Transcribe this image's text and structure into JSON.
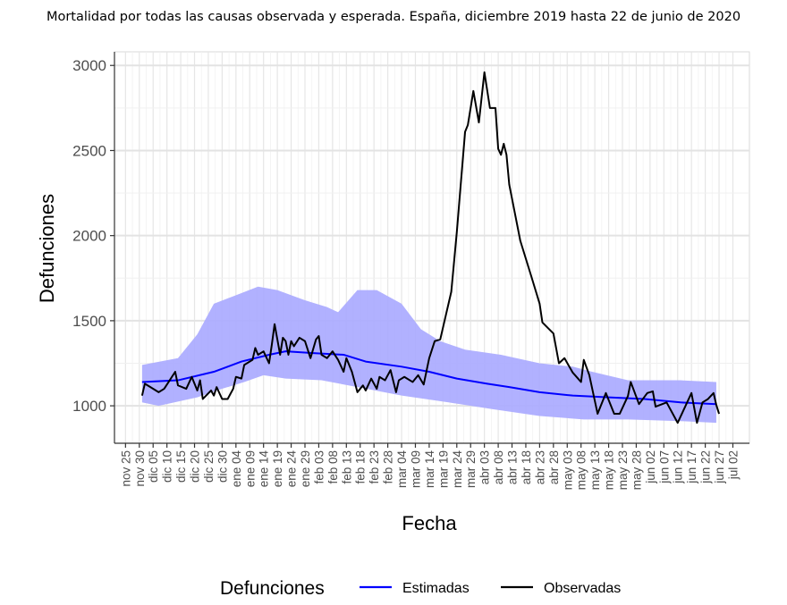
{
  "chart_data": {
    "type": "line",
    "title": "Mortalidad por todas las causas observada y esperada. España, diciembre 2019 hasta 22 de junio de 2020",
    "xlabel": "Fecha",
    "ylabel": "Defunciones",
    "x_unit": "days since 2019-11-25",
    "xlim": [
      -4,
      226
    ],
    "ylim": [
      780,
      3080
    ],
    "yticks": [
      1000,
      1500,
      2000,
      2500,
      3000
    ],
    "xtick_labels": [
      "nov 25",
      "nov 30",
      "dic 05",
      "dic 10",
      "dic 15",
      "dic 20",
      "dic 25",
      "dic 30",
      "ene 04",
      "ene 09",
      "ene 14",
      "ene 19",
      "ene 24",
      "ene 29",
      "feb 03",
      "feb 08",
      "feb 13",
      "feb 18",
      "feb 23",
      "feb 28",
      "mar 04",
      "mar 09",
      "mar 14",
      "mar 19",
      "mar 24",
      "mar 29",
      "abr 03",
      "abr 08",
      "abr 13",
      "abr 18",
      "abr 23",
      "abr 28",
      "may 03",
      "may 08",
      "may 13",
      "may 18",
      "may 23",
      "may 28",
      "jun 02",
      "jun 07",
      "jun 12",
      "jun 17",
      "jun 22",
      "jun 27",
      "jul 02"
    ],
    "xtick_step_days": 5,
    "grid": true,
    "legend": {
      "title": "Defunciones",
      "position": "bottom",
      "entries": [
        {
          "name": "Estimadas",
          "color": "#0000ff"
        },
        {
          "name": "Observadas",
          "color": "#000000"
        }
      ]
    },
    "band": {
      "color": "#a9a9ff",
      "upper": [
        [
          6,
          1240
        ],
        [
          19,
          1280
        ],
        [
          26,
          1420
        ],
        [
          32,
          1600
        ],
        [
          40,
          1650
        ],
        [
          48,
          1700
        ],
        [
          55,
          1680
        ],
        [
          65,
          1620
        ],
        [
          73,
          1580
        ],
        [
          77,
          1550
        ],
        [
          84,
          1680
        ],
        [
          91,
          1680
        ],
        [
          100,
          1600
        ],
        [
          107,
          1450
        ],
        [
          114,
          1380
        ],
        [
          123,
          1330
        ],
        [
          136,
          1300
        ],
        [
          150,
          1250
        ],
        [
          162,
          1230
        ],
        [
          169,
          1200
        ],
        [
          182,
          1150
        ],
        [
          201,
          1150
        ],
        [
          214,
          1140
        ]
      ],
      "lower": [
        [
          6,
          1020
        ],
        [
          12,
          1000
        ],
        [
          26,
          1050
        ],
        [
          35,
          1100
        ],
        [
          43,
          1140
        ],
        [
          50,
          1180
        ],
        [
          58,
          1160
        ],
        [
          71,
          1150
        ],
        [
          84,
          1110
        ],
        [
          100,
          1060
        ],
        [
          117,
          1020
        ],
        [
          133,
          980
        ],
        [
          150,
          940
        ],
        [
          166,
          920
        ],
        [
          182,
          920
        ],
        [
          201,
          910
        ],
        [
          214,
          900
        ]
      ]
    },
    "series": [
      {
        "name": "Estimadas",
        "color": "#0000ff",
        "points": [
          [
            6,
            1140
          ],
          [
            19,
            1150
          ],
          [
            32,
            1200
          ],
          [
            42,
            1260
          ],
          [
            52,
            1300
          ],
          [
            58,
            1320
          ],
          [
            68,
            1310
          ],
          [
            79,
            1300
          ],
          [
            87,
            1260
          ],
          [
            100,
            1230
          ],
          [
            110,
            1200
          ],
          [
            120,
            1160
          ],
          [
            131,
            1130
          ],
          [
            139,
            1110
          ],
          [
            150,
            1080
          ],
          [
            162,
            1060
          ],
          [
            175,
            1050
          ],
          [
            188,
            1040
          ],
          [
            201,
            1020
          ],
          [
            214,
            1010
          ]
        ]
      },
      {
        "name": "Observadas",
        "color": "#000000",
        "points": [
          [
            6,
            1060
          ],
          [
            7,
            1130
          ],
          [
            9,
            1110
          ],
          [
            12,
            1080
          ],
          [
            14,
            1100
          ],
          [
            16,
            1150
          ],
          [
            18,
            1200
          ],
          [
            19,
            1120
          ],
          [
            22,
            1100
          ],
          [
            24,
            1170
          ],
          [
            26,
            1090
          ],
          [
            27,
            1150
          ],
          [
            28,
            1040
          ],
          [
            31,
            1090
          ],
          [
            32,
            1060
          ],
          [
            33,
            1110
          ],
          [
            35,
            1040
          ],
          [
            37,
            1040
          ],
          [
            39,
            1100
          ],
          [
            40,
            1170
          ],
          [
            42,
            1160
          ],
          [
            43,
            1240
          ],
          [
            46,
            1270
          ],
          [
            47,
            1340
          ],
          [
            48,
            1300
          ],
          [
            50,
            1320
          ],
          [
            52,
            1250
          ],
          [
            53,
            1360
          ],
          [
            54,
            1480
          ],
          [
            56,
            1300
          ],
          [
            57,
            1400
          ],
          [
            58,
            1380
          ],
          [
            59,
            1300
          ],
          [
            60,
            1380
          ],
          [
            61,
            1350
          ],
          [
            63,
            1400
          ],
          [
            65,
            1380
          ],
          [
            67,
            1280
          ],
          [
            69,
            1390
          ],
          [
            70,
            1410
          ],
          [
            71,
            1300
          ],
          [
            73,
            1280
          ],
          [
            75,
            1320
          ],
          [
            77,
            1270
          ],
          [
            79,
            1200
          ],
          [
            80,
            1280
          ],
          [
            82,
            1200
          ],
          [
            84,
            1080
          ],
          [
            86,
            1120
          ],
          [
            87,
            1090
          ],
          [
            89,
            1160
          ],
          [
            91,
            1100
          ],
          [
            92,
            1170
          ],
          [
            94,
            1150
          ],
          [
            96,
            1210
          ],
          [
            98,
            1080
          ],
          [
            99,
            1150
          ],
          [
            101,
            1170
          ],
          [
            104,
            1140
          ],
          [
            106,
            1180
          ],
          [
            108,
            1125
          ],
          [
            110,
            1280
          ],
          [
            112,
            1380
          ],
          [
            114,
            1390
          ],
          [
            118,
            1670
          ],
          [
            120,
            2020
          ],
          [
            123,
            2610
          ],
          [
            124,
            2650
          ],
          [
            126,
            2850
          ],
          [
            128,
            2665
          ],
          [
            130,
            2960
          ],
          [
            132,
            2750
          ],
          [
            134,
            2750
          ],
          [
            135,
            2510
          ],
          [
            136,
            2475
          ],
          [
            137,
            2540
          ],
          [
            138,
            2475
          ],
          [
            139,
            2300
          ],
          [
            143,
            1970
          ],
          [
            147,
            1760
          ],
          [
            150,
            1600
          ],
          [
            151,
            1490
          ],
          [
            155,
            1425
          ],
          [
            157,
            1250
          ],
          [
            159,
            1280
          ],
          [
            162,
            1195
          ],
          [
            165,
            1140
          ],
          [
            166,
            1270
          ],
          [
            168,
            1180
          ],
          [
            171,
            953
          ],
          [
            174,
            1075
          ],
          [
            177,
            953
          ],
          [
            179,
            953
          ],
          [
            182,
            1058
          ],
          [
            183,
            1140
          ],
          [
            186,
            1010
          ],
          [
            189,
            1075
          ],
          [
            191,
            1085
          ],
          [
            192,
            995
          ],
          [
            196,
            1020
          ],
          [
            200,
            900
          ],
          [
            202,
            970
          ],
          [
            205,
            1075
          ],
          [
            207,
            900
          ],
          [
            209,
            1020
          ],
          [
            211,
            1040
          ],
          [
            213,
            1075
          ],
          [
            214,
            1005
          ],
          [
            215,
            953
          ]
        ]
      }
    ]
  }
}
